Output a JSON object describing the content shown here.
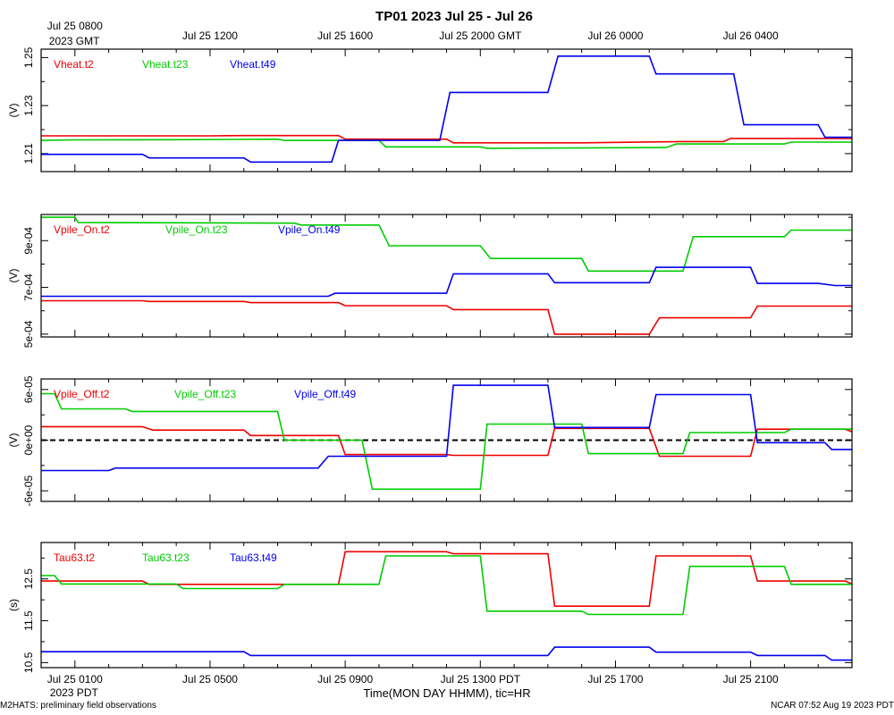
{
  "title": "TP01 2023 Jul 25 - Jul 26",
  "xlabel": "Time(MON DAY HHMM), tic=HR",
  "footer_left": "M2HATS: preliminary field observations",
  "footer_right": "NCAR 07:52 Aug 19 2023 PDT",
  "top_axis": {
    "ticks": [
      {
        "t": 0,
        "label": "Jul 25 0800",
        "sub": "2023 GMT"
      },
      {
        "t": 4,
        "label": "Jul 25 1200"
      },
      {
        "t": 8,
        "label": "Jul 25 1600"
      },
      {
        "t": 12,
        "label": "Jul 25 2000 GMT"
      },
      {
        "t": 16,
        "label": "Jul 26 0000"
      },
      {
        "t": 20,
        "label": "Jul 26 0400"
      }
    ]
  },
  "bottom_axis": {
    "ticks": [
      {
        "t": 0,
        "label": "Jul 25 0100",
        "sub": "2023 PDT"
      },
      {
        "t": 4,
        "label": "Jul 25 0500"
      },
      {
        "t": 8,
        "label": "Jul 25 0900"
      },
      {
        "t": 12,
        "label": "Jul 25 1300 PDT"
      },
      {
        "t": 16,
        "label": "Jul 25 1700"
      },
      {
        "t": 20,
        "label": "Jul 25 2100"
      }
    ]
  },
  "colors": {
    "t2": "#ee0000",
    "t23": "#00cc00",
    "t49": "#0000ee"
  },
  "chart_data": [
    {
      "type": "line",
      "title": "Vheat",
      "ylabel": "(V)",
      "x_range": [
        -1,
        23
      ],
      "ylim": [
        1.2025,
        1.2535
      ],
      "yticks": [
        1.21,
        1.23,
        1.25
      ],
      "ytick_labels": [
        "1.21",
        "1.23",
        "1.25"
      ],
      "zero_line": false,
      "series": [
        {
          "name": "Vheat.t2",
          "color": "#ee0000",
          "points": [
            [
              -1,
              1.2174
            ],
            [
              4,
              1.2174
            ],
            [
              5,
              1.2175
            ],
            [
              7.8,
              1.2175
            ],
            [
              8,
              1.216
            ],
            [
              11,
              1.216
            ],
            [
              11.2,
              1.2145
            ],
            [
              15,
              1.2145
            ],
            [
              18,
              1.215
            ],
            [
              19.2,
              1.215
            ],
            [
              19.4,
              1.2163
            ],
            [
              22.5,
              1.2163
            ],
            [
              23,
              1.2163
            ]
          ]
        },
        {
          "name": "Vheat.t23",
          "color": "#00cc00",
          "points": [
            [
              -1,
              1.2155
            ],
            [
              0,
              1.2157
            ],
            [
              3,
              1.2158
            ],
            [
              6,
              1.216
            ],
            [
              6.2,
              1.2155
            ],
            [
              9,
              1.2155
            ],
            [
              9.2,
              1.2128
            ],
            [
              12,
              1.2128
            ],
            [
              12.2,
              1.2122
            ],
            [
              17.5,
              1.2125
            ],
            [
              17.8,
              1.214
            ],
            [
              21,
              1.214
            ],
            [
              21.2,
              1.2148
            ],
            [
              23,
              1.2148
            ]
          ]
        },
        {
          "name": "Vheat.t49",
          "color": "#0000ee",
          "points": [
            [
              -1,
              1.2097
            ],
            [
              2,
              1.2097
            ],
            [
              2.2,
              1.2082
            ],
            [
              5,
              1.2082
            ],
            [
              5.2,
              1.2065
            ],
            [
              7.6,
              1.2065
            ],
            [
              7.8,
              1.2155
            ],
            [
              10.8,
              1.2155
            ],
            [
              11.1,
              1.2355
            ],
            [
              14,
              1.2355
            ],
            [
              14.3,
              1.2506
            ],
            [
              17,
              1.2506
            ],
            [
              17.2,
              1.2432
            ],
            [
              19.5,
              1.2432
            ],
            [
              19.8,
              1.222
            ],
            [
              22,
              1.222
            ],
            [
              22.2,
              1.2168
            ],
            [
              23,
              1.2168
            ]
          ]
        }
      ]
    },
    {
      "type": "line",
      "title": "Vpile_On",
      "ylabel": "(V)",
      "x_range": [
        -1,
        23
      ],
      "ylim": [
        0.000488,
        0.001012
      ],
      "yticks": [
        0.0005,
        0.0007,
        0.0009
      ],
      "ytick_labels": [
        "5e-04",
        "7e-04",
        "9e-04"
      ],
      "zero_line": false,
      "series": [
        {
          "name": "Vpile_On.t2",
          "color": "#ee0000",
          "points": [
            [
              -1,
              0.000643
            ],
            [
              2,
              0.000643
            ],
            [
              2.2,
              0.00064
            ],
            [
              5,
              0.00064
            ],
            [
              5.2,
              0.000635
            ],
            [
              7.8,
              0.000635
            ],
            [
              8,
              0.000622
            ],
            [
              11,
              0.000622
            ],
            [
              11.2,
              0.000605
            ],
            [
              14,
              0.000605
            ],
            [
              14.2,
              0.0005
            ],
            [
              17,
              0.0005
            ],
            [
              17.3,
              0.00057
            ],
            [
              20,
              0.00057
            ],
            [
              20.2,
              0.00062
            ],
            [
              23,
              0.00062
            ]
          ]
        },
        {
          "name": "Vpile_On.t23",
          "color": "#00cc00",
          "points": [
            [
              -1,
              0.001
            ],
            [
              0,
              0.001
            ],
            [
              0.1,
              0.000978
            ],
            [
              6.5,
              0.000975
            ],
            [
              6.7,
              0.000967
            ],
            [
              9,
              0.000967
            ],
            [
              9.3,
              0.000878
            ],
            [
              12,
              0.000878
            ],
            [
              12.3,
              0.000824
            ],
            [
              15,
              0.000824
            ],
            [
              15.2,
              0.00077
            ],
            [
              18,
              0.00077
            ],
            [
              18.3,
              0.000917
            ],
            [
              21,
              0.000917
            ],
            [
              21.2,
              0.000945
            ],
            [
              23,
              0.000945
            ]
          ]
        },
        {
          "name": "Vpile_On.t49",
          "color": "#0000ee",
          "points": [
            [
              -1,
              0.000662
            ],
            [
              7.5,
              0.000662
            ],
            [
              7.7,
              0.000675
            ],
            [
              11,
              0.000675
            ],
            [
              11.2,
              0.000758
            ],
            [
              14,
              0.000758
            ],
            [
              14.2,
              0.00072
            ],
            [
              17,
              0.00072
            ],
            [
              17.2,
              0.000786
            ],
            [
              20,
              0.000786
            ],
            [
              20.2,
              0.000717
            ],
            [
              22,
              0.000717
            ],
            [
              22.5,
              0.000708
            ],
            [
              23,
              0.000708
            ]
          ]
        }
      ]
    },
    {
      "type": "line",
      "title": "Vpile_Off",
      "ylabel": "(V)",
      "x_range": [
        -1,
        23
      ],
      "ylim": [
        -7.25e-05,
        7.25e-05
      ],
      "yticks": [
        -6e-05,
        0,
        6e-05
      ],
      "ytick_labels": [
        "-6e-05",
        "0e+00",
        "6e-05"
      ],
      "zero_line": true,
      "series": [
        {
          "name": "Vpile_Off.t2",
          "color": "#ee0000",
          "points": [
            [
              -1,
              1.6e-05
            ],
            [
              2,
              1.6e-05
            ],
            [
              2.3,
              1.2e-05
            ],
            [
              5,
              1.2e-05
            ],
            [
              5.2,
              5.5e-06
            ],
            [
              7.8,
              5.5e-06
            ],
            [
              8,
              -1.7e-05
            ],
            [
              11,
              -1.7e-05
            ],
            [
              11.2,
              -1.8e-05
            ],
            [
              14,
              -1.8e-05
            ],
            [
              14.2,
              1.4e-05
            ],
            [
              17,
              1.4e-05
            ],
            [
              17.3,
              -1.9e-05
            ],
            [
              20,
              -1.9e-05
            ],
            [
              20.2,
              1.3e-05
            ],
            [
              22.8,
              1.3e-05
            ],
            [
              23,
              1e-05
            ]
          ]
        },
        {
          "name": "Vpile_Off.t23",
          "color": "#00cc00",
          "points": [
            [
              -1,
              5.5e-05
            ],
            [
              -0.6,
              5.5e-05
            ],
            [
              -0.4,
              3.7e-05
            ],
            [
              1.5,
              3.7e-05
            ],
            [
              1.7,
              3.4e-05
            ],
            [
              6,
              3.4e-05
            ],
            [
              6.2,
              0
            ],
            [
              8.5,
              0
            ],
            [
              8.8,
              -5.8e-05
            ],
            [
              12,
              -5.8e-05
            ],
            [
              12.2,
              1.9e-05
            ],
            [
              15,
              1.9e-05
            ],
            [
              15.2,
              -1.6e-05
            ],
            [
              18,
              -1.6e-05
            ],
            [
              18.2,
              9e-06
            ],
            [
              21,
              9e-06
            ],
            [
              21.2,
              1.3e-05
            ],
            [
              23,
              1.3e-05
            ]
          ]
        },
        {
          "name": "Vpile_Off.t49",
          "color": "#0000ee",
          "points": [
            [
              -1,
              -3.6e-05
            ],
            [
              1,
              -3.6e-05
            ],
            [
              1.2,
              -3.3e-05
            ],
            [
              7.2,
              -3.3e-05
            ],
            [
              7.5,
              -1.9e-05
            ],
            [
              11,
              -1.9e-05
            ],
            [
              11.2,
              6.5e-05
            ],
            [
              14,
              6.5e-05
            ],
            [
              14.2,
              1.5e-05
            ],
            [
              17,
              1.5e-05
            ],
            [
              17.2,
              5.4e-05
            ],
            [
              20,
              5.4e-05
            ],
            [
              20.2,
              -3e-06
            ],
            [
              22.2,
              -3e-06
            ],
            [
              22.4,
              -1.1e-05
            ],
            [
              23,
              -1.1e-05
            ]
          ]
        }
      ]
    },
    {
      "type": "line",
      "title": "Tau63",
      "ylabel": "(s)",
      "x_range": [
        -1,
        23
      ],
      "ylim": [
        10.38,
        13.37
      ],
      "yticks": [
        10.5,
        11.5,
        12.5
      ],
      "ytick_labels": [
        "10.5",
        "11.5",
        "12.5"
      ],
      "zero_line": false,
      "series": [
        {
          "name": "Tau63.t2",
          "color": "#ee0000",
          "points": [
            [
              -1,
              12.45
            ],
            [
              2,
              12.45
            ],
            [
              2.2,
              12.37
            ],
            [
              7.8,
              12.37
            ],
            [
              8,
              13.15
            ],
            [
              11,
              13.15
            ],
            [
              11.2,
              13.1
            ],
            [
              14,
              13.1
            ],
            [
              14.2,
              11.85
            ],
            [
              17,
              11.85
            ],
            [
              17.2,
              13.05
            ],
            [
              20,
              13.05
            ],
            [
              20.2,
              12.45
            ],
            [
              22.8,
              12.45
            ],
            [
              23,
              12.38
            ]
          ]
        },
        {
          "name": "Tau63.t23",
          "color": "#00cc00",
          "points": [
            [
              -1,
              12.58
            ],
            [
              -0.6,
              12.58
            ],
            [
              -0.4,
              12.38
            ],
            [
              3,
              12.38
            ],
            [
              3.2,
              12.27
            ],
            [
              6,
              12.27
            ],
            [
              6.2,
              12.37
            ],
            [
              9,
              12.37
            ],
            [
              9.2,
              13.05
            ],
            [
              12,
              13.05
            ],
            [
              12.2,
              11.73
            ],
            [
              15,
              11.73
            ],
            [
              15.2,
              11.65
            ],
            [
              18,
              11.65
            ],
            [
              18.2,
              12.8
            ],
            [
              21,
              12.8
            ],
            [
              21.2,
              12.37
            ],
            [
              23,
              12.37
            ]
          ]
        },
        {
          "name": "Tau63.t49",
          "color": "#0000ee",
          "points": [
            [
              -1,
              10.76
            ],
            [
              5,
              10.76
            ],
            [
              5.2,
              10.67
            ],
            [
              14,
              10.67
            ],
            [
              14.2,
              10.87
            ],
            [
              17,
              10.87
            ],
            [
              17.2,
              10.75
            ],
            [
              20,
              10.75
            ],
            [
              20.2,
              10.67
            ],
            [
              22.2,
              10.67
            ],
            [
              22.4,
              10.56
            ],
            [
              23,
              10.56
            ]
          ]
        }
      ]
    }
  ]
}
